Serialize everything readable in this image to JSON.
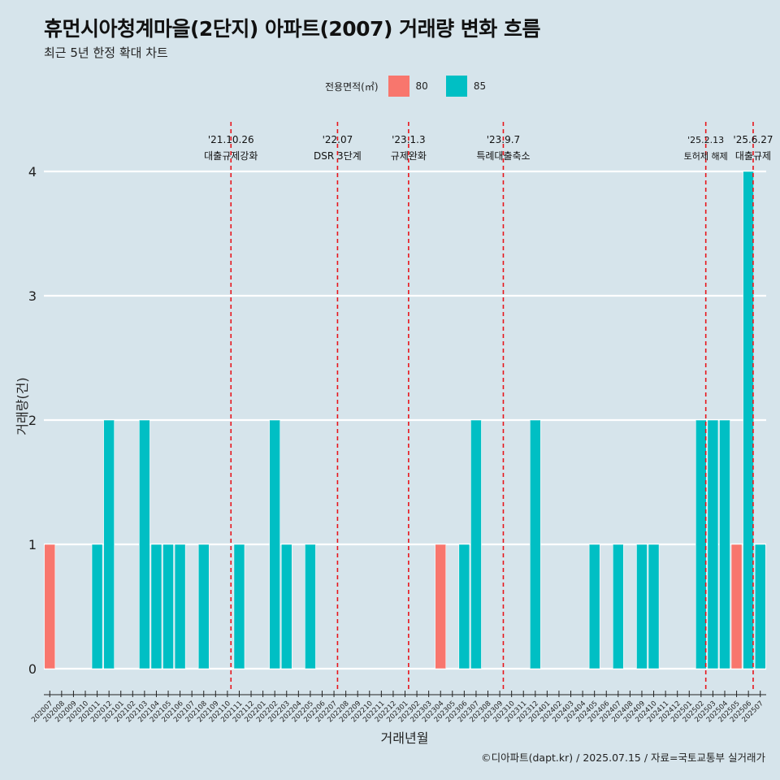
{
  "title": "휴먼시아청계마을(2단지) 아파트(2007) 거래량 변화 흐름",
  "subtitle": "최근 5년 한정 확대 차트",
  "legend": {
    "title": "전용면적(㎡)",
    "items": [
      {
        "label": "80",
        "color": "#f8766d"
      },
      {
        "label": "85",
        "color": "#00bfc4"
      }
    ]
  },
  "caption": "©디아파트(dapt.kr) / 2025.07.15 / 자료=국토교통부 실거래가",
  "chart_data": {
    "type": "bar",
    "xlabel": "거래년월",
    "ylabel": "거래량(건)",
    "ylim": [
      0,
      4
    ],
    "yticks": [
      0,
      1,
      2,
      3,
      4
    ],
    "categories": [
      "202007",
      "202008",
      "202009",
      "202010",
      "202011",
      "202012",
      "202101",
      "202102",
      "202103",
      "202104",
      "202105",
      "202106",
      "202107",
      "202108",
      "202109",
      "202110",
      "202111",
      "202112",
      "202201",
      "202202",
      "202203",
      "202204",
      "202205",
      "202206",
      "202207",
      "202208",
      "202209",
      "202210",
      "202211",
      "202212",
      "202301",
      "202302",
      "202303",
      "202304",
      "202305",
      "202306",
      "202307",
      "202308",
      "202309",
      "202310",
      "202311",
      "202312",
      "202401",
      "202402",
      "202403",
      "202404",
      "202405",
      "202406",
      "202407",
      "202408",
      "202409",
      "202410",
      "202411",
      "202412",
      "202501",
      "202502",
      "202503",
      "202504",
      "202505",
      "202506",
      "202507"
    ],
    "bars": [
      {
        "x": "202007",
        "area": "80",
        "value": 1
      },
      {
        "x": "202011",
        "area": "85",
        "value": 1
      },
      {
        "x": "202012",
        "area": "85",
        "value": 2
      },
      {
        "x": "202103",
        "area": "85",
        "value": 2
      },
      {
        "x": "202104",
        "area": "85",
        "value": 1
      },
      {
        "x": "202105",
        "area": "85",
        "value": 1
      },
      {
        "x": "202106",
        "area": "85",
        "value": 1
      },
      {
        "x": "202108",
        "area": "85",
        "value": 1
      },
      {
        "x": "202111",
        "area": "85",
        "value": 1
      },
      {
        "x": "202202",
        "area": "85",
        "value": 2
      },
      {
        "x": "202203",
        "area": "85",
        "value": 1
      },
      {
        "x": "202205",
        "area": "85",
        "value": 1
      },
      {
        "x": "202304",
        "area": "80",
        "value": 1
      },
      {
        "x": "202306",
        "area": "85",
        "value": 1
      },
      {
        "x": "202307",
        "area": "85",
        "value": 2
      },
      {
        "x": "202312",
        "area": "85",
        "value": 2
      },
      {
        "x": "202405",
        "area": "85",
        "value": 1
      },
      {
        "x": "202407",
        "area": "85",
        "value": 1
      },
      {
        "x": "202409",
        "area": "85",
        "value": 1
      },
      {
        "x": "202410",
        "area": "85",
        "value": 1
      },
      {
        "x": "202502",
        "area": "85",
        "value": 2
      },
      {
        "x": "202503",
        "area": "85",
        "value": 2
      },
      {
        "x": "202504",
        "area": "85",
        "value": 2
      },
      {
        "x": "202505",
        "area": "80",
        "value": 1
      },
      {
        "x": "202506",
        "area": "85",
        "value": 4
      },
      {
        "x": "202507",
        "area": "85",
        "value": 1
      }
    ],
    "annotations": [
      {
        "pos": 15.3,
        "date": "'21.10.26",
        "label": "대출규제강화"
      },
      {
        "pos": 24.3,
        "date": "'22.07",
        "label": "DSR 3단계"
      },
      {
        "pos": 30.3,
        "date": "'23.1.3",
        "label": "규제완화"
      },
      {
        "pos": 38.3,
        "date": "'23.9.7",
        "label": "특례대출축소"
      },
      {
        "pos": 55.4,
        "date": "'25.2.13",
        "label": "토허제 해제"
      },
      {
        "pos": 59.4,
        "date": "'25.6.27",
        "label": "대출규제"
      }
    ]
  }
}
